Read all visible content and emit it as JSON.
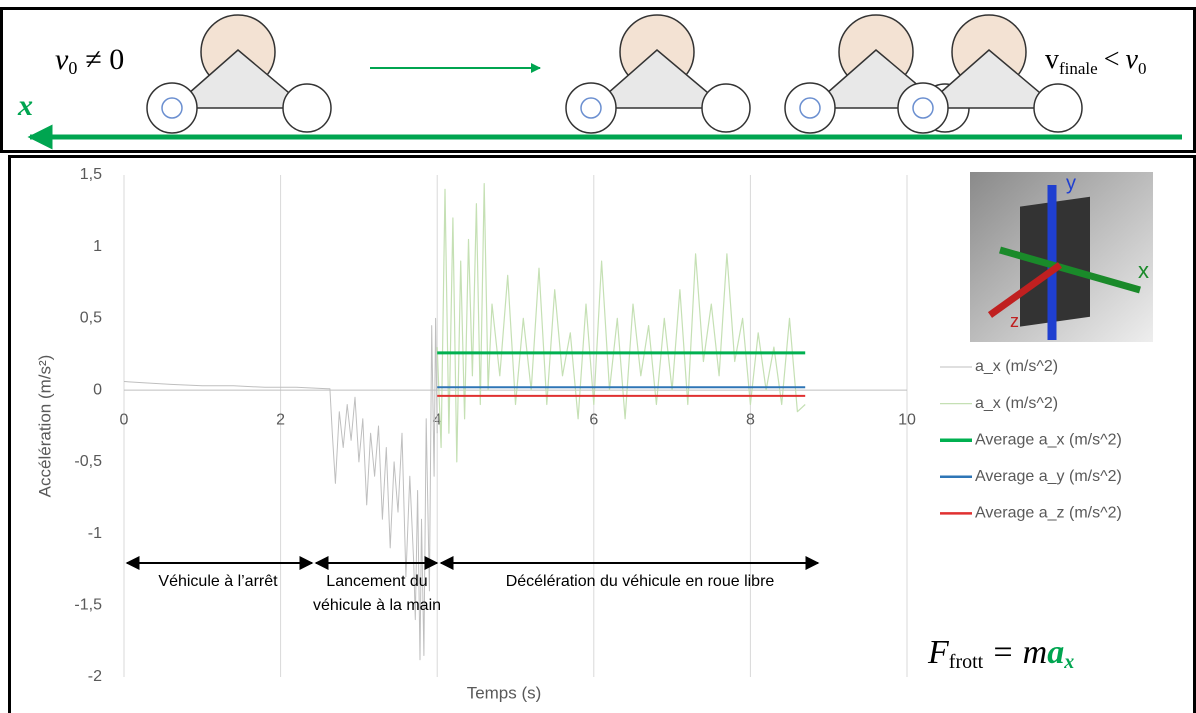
{
  "top_panel": {
    "left_label": {
      "symbol": "v",
      "subscript": "0",
      "relation": "≠ 0"
    },
    "right_label": {
      "symbol": "v",
      "subscript": "finale",
      "relation": "<",
      "symbol2": "v",
      "subscript2": "0"
    },
    "axis_label": "x"
  },
  "chart_data": {
    "type": "line",
    "x_label": "Temps (s)",
    "y_label": "Accélération (m/s²)",
    "xlim": [
      0,
      10
    ],
    "xticks": [
      0,
      2,
      4,
      6,
      8,
      10
    ],
    "ylim": [
      -2,
      1.5
    ],
    "yticks": [
      {
        "value": 1.5,
        "label": "1,5"
      },
      1,
      {
        "value": 0.5,
        "label": "0,5"
      },
      0,
      {
        "value": -0.5,
        "label": "-0,5"
      },
      -1,
      {
        "value": -1.5,
        "label": "-1,5"
      },
      -2
    ],
    "grid": "x",
    "legend": "right",
    "series": [
      {
        "name": "a_x (m/s^2)",
        "color": "#bfbfbf",
        "width": 1,
        "x": [
          0,
          0.3,
          0.6,
          1.0,
          1.4,
          1.8,
          2.2,
          2.6,
          2.63,
          2.66,
          2.7,
          2.75,
          2.8,
          2.85,
          2.9,
          2.95,
          3.0,
          3.05,
          3.1,
          3.15,
          3.2,
          3.25,
          3.3,
          3.35,
          3.4,
          3.45,
          3.5,
          3.55,
          3.6,
          3.65,
          3.7,
          3.72,
          3.75,
          3.78,
          3.8,
          3.83,
          3.86,
          3.9,
          3.93,
          3.96,
          3.98,
          4.0
        ],
        "values": [
          0.06,
          0.05,
          0.04,
          0.03,
          0.03,
          0.02,
          0.02,
          0.01,
          0.01,
          -0.3,
          -0.65,
          -0.15,
          -0.4,
          -0.1,
          -0.35,
          -0.05,
          -0.5,
          -0.2,
          -0.8,
          -0.3,
          -0.6,
          -0.25,
          -0.9,
          -0.4,
          -1.1,
          -0.5,
          -0.85,
          -0.3,
          -1.3,
          -0.6,
          -1.2,
          -1.6,
          -0.7,
          -1.88,
          -0.9,
          -1.85,
          -0.2,
          -1.4,
          0.45,
          -0.6,
          0.5,
          -0.3
        ]
      },
      {
        "name": "a_x (m/s^2)",
        "color": "#c5e0b4",
        "width": 1.2,
        "x": [
          4.0,
          4.05,
          4.1,
          4.15,
          4.2,
          4.25,
          4.3,
          4.35,
          4.4,
          4.45,
          4.5,
          4.55,
          4.6,
          4.65,
          4.7,
          4.8,
          4.9,
          5.0,
          5.1,
          5.2,
          5.3,
          5.4,
          5.5,
          5.6,
          5.7,
          5.8,
          5.9,
          6.0,
          6.1,
          6.2,
          6.3,
          6.4,
          6.5,
          6.6,
          6.7,
          6.8,
          6.9,
          7.0,
          7.1,
          7.2,
          7.3,
          7.4,
          7.5,
          7.6,
          7.7,
          7.8,
          7.9,
          8.0,
          8.1,
          8.2,
          8.3,
          8.4,
          8.5,
          8.6,
          8.7
        ],
        "values": [
          0.3,
          -0.4,
          1.4,
          -0.3,
          1.2,
          -0.5,
          0.9,
          -0.2,
          1.05,
          0.1,
          1.3,
          -0.1,
          1.44,
          0.0,
          0.6,
          0.1,
          0.8,
          -0.1,
          0.5,
          0.0,
          0.85,
          -0.1,
          0.7,
          0.1,
          0.4,
          -0.2,
          0.6,
          -0.1,
          0.9,
          0.0,
          0.5,
          -0.2,
          0.6,
          0.1,
          0.45,
          -0.1,
          0.5,
          0.0,
          0.7,
          -0.1,
          0.95,
          0.2,
          0.6,
          0.1,
          0.95,
          0.2,
          0.5,
          -0.1,
          0.4,
          0.0,
          0.3,
          -0.1,
          0.5,
          -0.15,
          -0.1
        ]
      },
      {
        "name": "Average a_x (m/s^2)",
        "color": "#00b050",
        "width": 3,
        "x": [
          4.0,
          8.7
        ],
        "values": [
          0.26,
          0.26
        ]
      },
      {
        "name": "Average a_y (m/s^2)",
        "color": "#2e75b6",
        "width": 2,
        "x": [
          4.0,
          8.7
        ],
        "values": [
          0.02,
          0.02
        ]
      },
      {
        "name": "Average a_z (m/s^2)",
        "color": "#e03030",
        "width": 2,
        "x": [
          4.0,
          8.7
        ],
        "values": [
          -0.04,
          -0.04
        ]
      }
    ],
    "annotations": [
      "Véhicule à l’arrêt",
      "Lancement du véhicule à la main",
      "Décélération du véhicule en roue libre"
    ],
    "formula": {
      "force": "F",
      "subscript": "frott",
      "equals": "= m",
      "accel": "a",
      "accel_subscript": "x"
    },
    "image_labels": {
      "y": "y",
      "x": "x",
      "z": "z"
    }
  }
}
